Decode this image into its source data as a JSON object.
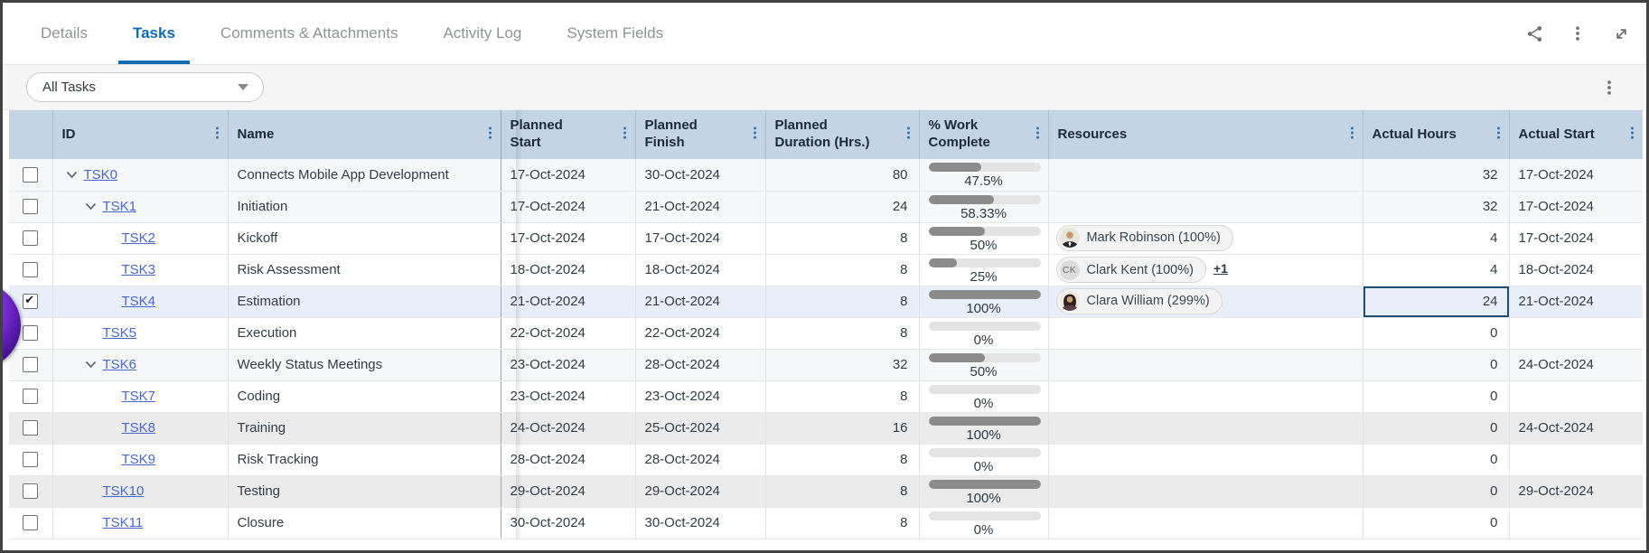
{
  "tabs": {
    "items": [
      {
        "label": "Details",
        "active": false
      },
      {
        "label": "Tasks",
        "active": true
      },
      {
        "label": "Comments & Attachments",
        "active": false
      },
      {
        "label": "Activity Log",
        "active": false
      },
      {
        "label": "System Fields",
        "active": false
      }
    ]
  },
  "top_icons": [
    {
      "name": "share-icon"
    },
    {
      "name": "more-options-icon"
    },
    {
      "name": "expand-icon"
    }
  ],
  "toolbar": {
    "filter_value": "All Tasks",
    "menu_icon": "kebab-menu-icon"
  },
  "table": {
    "columns": [
      {
        "key": "checkbox",
        "label": "",
        "kebab": false
      },
      {
        "key": "id",
        "label": "ID",
        "kebab": true
      },
      {
        "key": "name",
        "label": "Name",
        "kebab": true
      },
      {
        "key": "planned_start",
        "label": "Planned\nStart",
        "kebab": true
      },
      {
        "key": "planned_finish",
        "label": "Planned\nFinish",
        "kebab": true
      },
      {
        "key": "planned_duration",
        "label": "Planned\nDuration (Hrs.)",
        "kebab": true
      },
      {
        "key": "pct",
        "label": "% Work\nComplete",
        "kebab": true
      },
      {
        "key": "resources",
        "label": "Resources",
        "kebab": true
      },
      {
        "key": "actual_hours",
        "label": "Actual Hours",
        "kebab": true
      },
      {
        "key": "actual_start",
        "label": "Actual Start",
        "kebab": true
      }
    ],
    "rows": [
      {
        "id": "TSK0",
        "level": 0,
        "expandable": true,
        "checked": false,
        "shade": "shade",
        "selected": false,
        "name": "Connects Mobile App Development",
        "planned_start": "17-Oct-2024",
        "planned_finish": "30-Oct-2024",
        "planned_duration": "80",
        "pct_value": 47.5,
        "pct_label": "47.5%",
        "resources": [],
        "actual_hours": "32",
        "actual_start": "17-Oct-2024",
        "selected_cell": ""
      },
      {
        "id": "TSK1",
        "level": 1,
        "expandable": true,
        "checked": false,
        "shade": "shade",
        "selected": false,
        "name": "Initiation",
        "planned_start": "17-Oct-2024",
        "planned_finish": "21-Oct-2024",
        "planned_duration": "24",
        "pct_value": 58.33,
        "pct_label": "58.33%",
        "resources": [],
        "actual_hours": "32",
        "actual_start": "17-Oct-2024",
        "selected_cell": ""
      },
      {
        "id": "TSK2",
        "level": 2,
        "expandable": false,
        "checked": false,
        "shade": "",
        "selected": false,
        "name": "Kickoff",
        "planned_start": "17-Oct-2024",
        "planned_finish": "17-Oct-2024",
        "planned_duration": "8",
        "pct_value": 50,
        "pct_label": "50%",
        "resources": [
          {
            "avatar": "photo-male",
            "label": "Mark Robinson (100%)"
          }
        ],
        "actual_hours": "4",
        "actual_start": "17-Oct-2024",
        "selected_cell": ""
      },
      {
        "id": "TSK3",
        "level": 2,
        "expandable": false,
        "checked": false,
        "shade": "",
        "selected": false,
        "name": "Risk Assessment",
        "planned_start": "18-Oct-2024",
        "planned_finish": "18-Oct-2024",
        "planned_duration": "8",
        "pct_value": 25,
        "pct_label": "25%",
        "resources": [
          {
            "avatar": "initials",
            "initials": "CK",
            "label": "Clark Kent (100%)",
            "extra_link": "+1"
          }
        ],
        "actual_hours": "4",
        "actual_start": "18-Oct-2024",
        "selected_cell": ""
      },
      {
        "id": "TSK4",
        "level": 2,
        "expandable": false,
        "checked": true,
        "shade": "",
        "selected": true,
        "name": "Estimation",
        "planned_start": "21-Oct-2024",
        "planned_finish": "21-Oct-2024",
        "planned_duration": "8",
        "pct_value": 100,
        "pct_label": "100%",
        "resources": [
          {
            "avatar": "photo-female",
            "label": "Clara William (299%)"
          }
        ],
        "actual_hours": "24",
        "actual_start": "21-Oct-2024",
        "selected_cell": "actual_hours"
      },
      {
        "id": "TSK5",
        "level": 1,
        "expandable": false,
        "checked": false,
        "shade": "",
        "selected": false,
        "name": "Execution",
        "planned_start": "22-Oct-2024",
        "planned_finish": "22-Oct-2024",
        "planned_duration": "8",
        "pct_value": 0,
        "pct_label": "0%",
        "resources": [],
        "actual_hours": "0",
        "actual_start": "",
        "selected_cell": ""
      },
      {
        "id": "TSK6",
        "level": 1,
        "expandable": true,
        "checked": false,
        "shade": "shade",
        "selected": false,
        "name": "Weekly Status Meetings",
        "planned_start": "23-Oct-2024",
        "planned_finish": "28-Oct-2024",
        "planned_duration": "32",
        "pct_value": 50,
        "pct_label": "50%",
        "resources": [],
        "actual_hours": "0",
        "actual_start": "24-Oct-2024",
        "selected_cell": ""
      },
      {
        "id": "TSK7",
        "level": 2,
        "expandable": false,
        "checked": false,
        "shade": "",
        "selected": false,
        "name": "Coding",
        "planned_start": "23-Oct-2024",
        "planned_finish": "23-Oct-2024",
        "planned_duration": "8",
        "pct_value": 0,
        "pct_label": "0%",
        "resources": [],
        "actual_hours": "0",
        "actual_start": "",
        "selected_cell": ""
      },
      {
        "id": "TSK8",
        "level": 2,
        "expandable": false,
        "checked": false,
        "shade": "shade2",
        "selected": false,
        "name": "Training",
        "planned_start": "24-Oct-2024",
        "planned_finish": "25-Oct-2024",
        "planned_duration": "16",
        "pct_value": 100,
        "pct_label": "100%",
        "resources": [],
        "actual_hours": "0",
        "actual_start": "24-Oct-2024",
        "selected_cell": ""
      },
      {
        "id": "TSK9",
        "level": 2,
        "expandable": false,
        "checked": false,
        "shade": "",
        "selected": false,
        "name": "Risk Tracking",
        "planned_start": "28-Oct-2024",
        "planned_finish": "28-Oct-2024",
        "planned_duration": "8",
        "pct_value": 0,
        "pct_label": "0%",
        "resources": [],
        "actual_hours": "0",
        "actual_start": "",
        "selected_cell": ""
      },
      {
        "id": "TSK10",
        "level": 1,
        "expandable": false,
        "checked": false,
        "shade": "shade2",
        "selected": false,
        "name": "Testing",
        "planned_start": "29-Oct-2024",
        "planned_finish": "29-Oct-2024",
        "planned_duration": "8",
        "pct_value": 100,
        "pct_label": "100%",
        "resources": [],
        "actual_hours": "0",
        "actual_start": "29-Oct-2024",
        "selected_cell": ""
      },
      {
        "id": "TSK11",
        "level": 1,
        "expandable": false,
        "checked": false,
        "shade": "",
        "selected": false,
        "name": "Closure",
        "planned_start": "30-Oct-2024",
        "planned_finish": "30-Oct-2024",
        "planned_duration": "8",
        "pct_value": 0,
        "pct_label": "0%",
        "resources": [],
        "actual_hours": "0",
        "actual_start": "",
        "selected_cell": ""
      }
    ]
  },
  "colors": {
    "active_tab": "#0f6cb4",
    "header_bg": "#c4d4e4",
    "link": "#4a67cb",
    "selected_row_bg": "#e9eff9",
    "selected_cell_border": "#1f4e79",
    "bar_fill": "#8b8b8b",
    "bar_track": "#e3e3e3",
    "sphere_overlay": "#6b23c4"
  }
}
